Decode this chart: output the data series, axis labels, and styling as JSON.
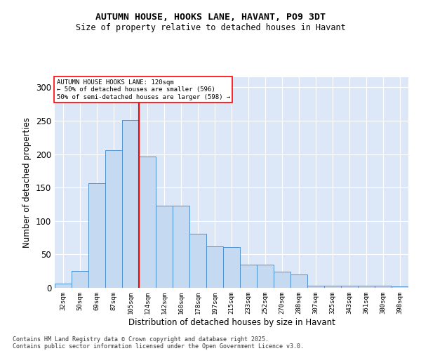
{
  "title1": "AUTUMN HOUSE, HOOKS LANE, HAVANT, PO9 3DT",
  "title2": "Size of property relative to detached houses in Havant",
  "xlabel": "Distribution of detached houses by size in Havant",
  "ylabel": "Number of detached properties",
  "categories": [
    "32sqm",
    "50sqm",
    "69sqm",
    "87sqm",
    "105sqm",
    "124sqm",
    "142sqm",
    "160sqm",
    "178sqm",
    "197sqm",
    "215sqm",
    "233sqm",
    "252sqm",
    "270sqm",
    "288sqm",
    "307sqm",
    "325sqm",
    "343sqm",
    "361sqm",
    "380sqm",
    "398sqm"
  ],
  "values": [
    6,
    25,
    156,
    206,
    251,
    196,
    123,
    123,
    81,
    62,
    61,
    35,
    35,
    24,
    20,
    3,
    3,
    3,
    3,
    3,
    2
  ],
  "bar_color": "#c5d9f1",
  "bar_edge_color": "#4e91d0",
  "vline_color": "red",
  "vline_index": 4.5,
  "annotation_text": "AUTUMN HOUSE HOOKS LANE: 120sqm\n← 50% of detached houses are smaller (596)\n50% of semi-detached houses are larger (598) →",
  "annotation_box_color": "white",
  "annotation_box_edge_color": "red",
  "ylim": [
    0,
    315
  ],
  "yticks": [
    0,
    50,
    100,
    150,
    200,
    250,
    300
  ],
  "background_color": "#dce8f8",
  "footer1": "Contains HM Land Registry data © Crown copyright and database right 2025.",
  "footer2": "Contains public sector information licensed under the Open Government Licence v3.0."
}
